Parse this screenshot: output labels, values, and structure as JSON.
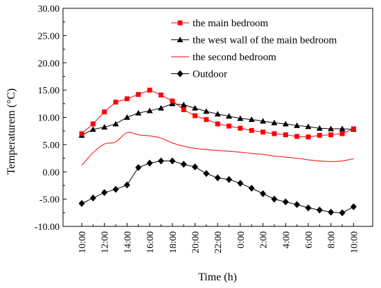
{
  "chart_data": {
    "type": "line",
    "xlabel": "Time (h)",
    "ylabel": "Temperaturem (°C)",
    "ylim": [
      -10,
      30
    ],
    "y_ticks": [
      "-10.00",
      "-5.00",
      "0.00",
      "5.00",
      "10.00",
      "15.00",
      "20.00",
      "25.00",
      "30.00"
    ],
    "x_tick_labels": [
      "10:00",
      "12:00",
      "14:00",
      "16:00",
      "18:00",
      "20:00",
      "22:00",
      "0:00",
      "2:00",
      "4:00",
      "6:00",
      "8:00",
      "10:00"
    ],
    "x_hours_elapsed": [
      0,
      1,
      2,
      3,
      4,
      5,
      6,
      7,
      8,
      9,
      10,
      11,
      12,
      13,
      14,
      15,
      16,
      17,
      18,
      19,
      20,
      21,
      22,
      23,
      24
    ],
    "grid": false,
    "legend_position": "top-right",
    "series": [
      {
        "name": "the main bedroom",
        "color": "#ff0000",
        "marker": "square",
        "values": [
          7.0,
          8.8,
          11.0,
          12.8,
          13.4,
          14.2,
          15.0,
          14.1,
          13.0,
          11.4,
          10.3,
          9.6,
          8.8,
          8.4,
          8.0,
          7.6,
          7.3,
          7.0,
          6.8,
          6.5,
          6.4,
          6.7,
          6.8,
          7.0,
          7.9
        ]
      },
      {
        "name": "the west wall of the main bedroom",
        "color": "#000000",
        "marker": "triangle",
        "values": [
          6.7,
          7.8,
          8.2,
          8.8,
          10.0,
          10.8,
          11.2,
          11.7,
          12.5,
          12.3,
          11.7,
          11.1,
          10.6,
          10.2,
          9.8,
          9.6,
          9.3,
          9.0,
          8.8,
          8.5,
          8.3,
          8.0,
          7.9,
          7.9,
          7.8
        ]
      },
      {
        "name": "the second bedroom",
        "color": "#ff0000",
        "marker": "none",
        "values": [
          1.2,
          3.5,
          5.1,
          5.5,
          7.2,
          6.8,
          6.6,
          6.2,
          5.3,
          4.7,
          4.3,
          4.1,
          3.9,
          3.8,
          3.6,
          3.4,
          3.2,
          2.9,
          2.7,
          2.5,
          2.2,
          2.0,
          1.9,
          2.0,
          2.4
        ]
      },
      {
        "name": "Outdoor",
        "color": "#000000",
        "marker": "diamond",
        "values": [
          -5.8,
          -4.8,
          -3.8,
          -3.2,
          -2.4,
          0.8,
          1.6,
          2.0,
          2.0,
          1.4,
          0.9,
          -0.3,
          -1.1,
          -1.4,
          -2.1,
          -3.0,
          -4.0,
          -5.0,
          -5.5,
          -6.0,
          -6.6,
          -7.0,
          -7.4,
          -7.5,
          -6.4
        ]
      }
    ]
  }
}
